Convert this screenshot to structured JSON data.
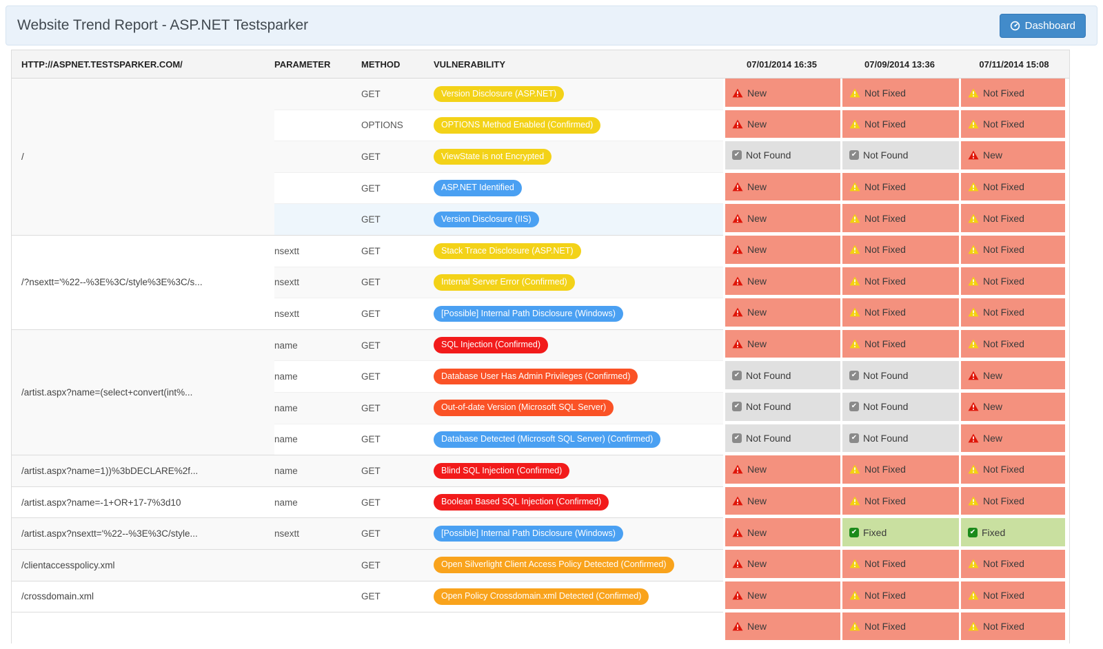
{
  "header": {
    "title": "Website Trend Report - ASP.NET Testsparker",
    "dashboard_label": "Dashboard"
  },
  "table": {
    "columns": {
      "url": "HTTP://ASPNET.TESTSPARKER.COM/",
      "parameter": "PARAMETER",
      "method": "METHOD",
      "vulnerability": "VULNERABILITY",
      "dates": [
        "07/01/2014 16:35",
        "07/09/2014 13:36",
        "07/11/2014 15:08"
      ]
    },
    "severity_colors": {
      "yellow": "#f3d218",
      "blue": "#4aa0f2",
      "red": "#f21b1b",
      "orange": "#fa5226",
      "amber": "#f9a31c"
    },
    "status_defs": {
      "new": {
        "label": "New",
        "icon": "triangle",
        "bg": "#f4917e",
        "icon_color": "#df1508"
      },
      "not_fixed": {
        "label": "Not Fixed",
        "icon": "triangle",
        "bg": "#f4917e",
        "icon_color": "#f3d30e"
      },
      "not_found": {
        "label": "Not Found",
        "icon": "checkbox",
        "bg": "#e0e0e0",
        "icon_color": "#8a8a8a"
      },
      "fixed": {
        "label": "Fixed",
        "icon": "checkbox",
        "bg": "#c9e0a0",
        "icon_color": "#1b8a1b"
      }
    },
    "groups": [
      {
        "url": "/",
        "bg": "gray",
        "rows": [
          {
            "parameter": "",
            "method": "GET",
            "vulnerability": "Version Disclosure (ASP.NET)",
            "severity": "yellow",
            "bg": "gray",
            "statuses": [
              "new",
              "not_fixed",
              "not_fixed"
            ]
          },
          {
            "parameter": "",
            "method": "OPTIONS",
            "vulnerability": "OPTIONS Method Enabled (Confirmed)",
            "severity": "yellow",
            "bg": "white",
            "statuses": [
              "new",
              "not_fixed",
              "not_fixed"
            ]
          },
          {
            "parameter": "",
            "method": "GET",
            "vulnerability": "ViewState is not Encrypted",
            "severity": "yellow",
            "bg": "gray",
            "statuses": [
              "not_found",
              "not_found",
              "new"
            ]
          },
          {
            "parameter": "",
            "method": "GET",
            "vulnerability": "ASP.NET Identified",
            "severity": "blue",
            "bg": "white",
            "statuses": [
              "new",
              "not_fixed",
              "not_fixed"
            ]
          },
          {
            "parameter": "",
            "method": "GET",
            "vulnerability": "Version Disclosure (IIS)",
            "severity": "blue",
            "bg": "blue",
            "statuses": [
              "new",
              "not_fixed",
              "not_fixed"
            ]
          }
        ]
      },
      {
        "url": "/?nsextt='%22--%3E%3C/style%3E%3C/s...",
        "bg": "white",
        "rows": [
          {
            "parameter": "nsextt",
            "method": "GET",
            "vulnerability": "Stack Trace Disclosure (ASP.NET)",
            "severity": "yellow",
            "bg": "white",
            "statuses": [
              "new",
              "not_fixed",
              "not_fixed"
            ]
          },
          {
            "parameter": "nsextt",
            "method": "GET",
            "vulnerability": "Internal Server Error (Confirmed)",
            "severity": "yellow",
            "bg": "gray",
            "statuses": [
              "new",
              "not_fixed",
              "not_fixed"
            ]
          },
          {
            "parameter": "nsextt",
            "method": "GET",
            "vulnerability": "[Possible] Internal Path Disclosure (Windows)",
            "severity": "blue",
            "bg": "white",
            "statuses": [
              "new",
              "not_fixed",
              "not_fixed"
            ]
          }
        ]
      },
      {
        "url": "/artist.aspx?name=(select+convert(int%...",
        "bg": "gray",
        "rows": [
          {
            "parameter": "name",
            "method": "GET",
            "vulnerability": "SQL Injection (Confirmed)",
            "severity": "red",
            "bg": "gray",
            "statuses": [
              "new",
              "not_fixed",
              "not_fixed"
            ]
          },
          {
            "parameter": "name",
            "method": "GET",
            "vulnerability": "Database User Has Admin Privileges (Confirmed)",
            "severity": "orange",
            "bg": "white",
            "statuses": [
              "not_found",
              "not_found",
              "new"
            ]
          },
          {
            "parameter": "name",
            "method": "GET",
            "vulnerability": "Out-of-date Version (Microsoft SQL Server)",
            "severity": "orange",
            "bg": "gray",
            "statuses": [
              "not_found",
              "not_found",
              "new"
            ]
          },
          {
            "parameter": "name",
            "method": "GET",
            "vulnerability": "Database Detected (Microsoft SQL Server) (Confirmed)",
            "severity": "blue",
            "bg": "white",
            "statuses": [
              "not_found",
              "not_found",
              "new"
            ]
          }
        ]
      },
      {
        "url": "/artist.aspx?name=1))%3bDECLARE%2f...",
        "bg": "gray",
        "rows": [
          {
            "parameter": "name",
            "method": "GET",
            "vulnerability": "Blind SQL Injection (Confirmed)",
            "severity": "red",
            "bg": "gray",
            "statuses": [
              "new",
              "not_fixed",
              "not_fixed"
            ]
          }
        ]
      },
      {
        "url": "/artist.aspx?name=-1+OR+17-7%3d10",
        "bg": "white",
        "rows": [
          {
            "parameter": "name",
            "method": "GET",
            "vulnerability": "Boolean Based SQL Injection (Confirmed)",
            "severity": "red",
            "bg": "white",
            "statuses": [
              "new",
              "not_fixed",
              "not_fixed"
            ]
          }
        ]
      },
      {
        "url": "/artist.aspx?nsextt='%22--%3E%3C/style...",
        "bg": "gray",
        "rows": [
          {
            "parameter": "nsextt",
            "method": "GET",
            "vulnerability": "[Possible] Internal Path Disclosure (Windows)",
            "severity": "blue",
            "bg": "gray",
            "statuses": [
              "new",
              "fixed",
              "fixed"
            ]
          }
        ]
      },
      {
        "url": "/clientaccesspolicy.xml",
        "bg": "gray",
        "rows": [
          {
            "parameter": "",
            "method": "GET",
            "vulnerability": "Open Silverlight Client Access Policy Detected (Confirmed)",
            "severity": "amber",
            "bg": "gray",
            "statuses": [
              "new",
              "not_fixed",
              "not_fixed"
            ]
          }
        ]
      },
      {
        "url": "/crossdomain.xml",
        "bg": "white",
        "rows": [
          {
            "parameter": "",
            "method": "GET",
            "vulnerability": "Open Policy Crossdomain.xml Detected (Confirmed)",
            "severity": "amber",
            "bg": "white",
            "statuses": [
              "new",
              "not_fixed",
              "not_fixed"
            ]
          }
        ]
      }
    ],
    "partial_row": {
      "url": "",
      "parameter": "",
      "method": "",
      "vulnerability": "",
      "severity": "",
      "bg": "white",
      "statuses": [
        "new",
        "not_fixed",
        "not_fixed"
      ]
    }
  }
}
